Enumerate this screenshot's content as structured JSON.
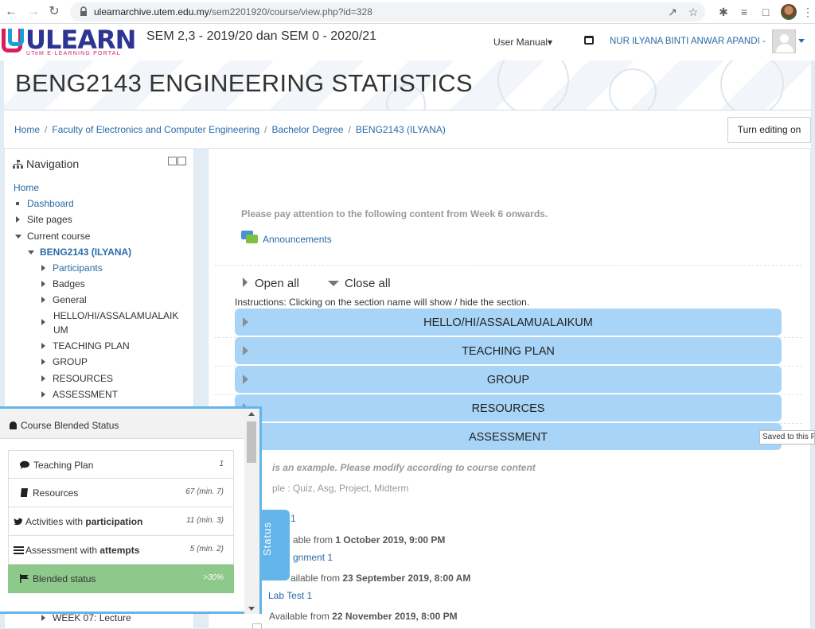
{
  "browser": {
    "url_host": "ulearnarchive.utem.edu.my",
    "url_path": "/sem2201920/course/view.php?id=328"
  },
  "navbar": {
    "logo_text": "ULEARN",
    "logo_sub": "UTeM E-LEARNING PORTAL",
    "semester": "SEM 2,3 - 2019/20 dan SEM 0 - 2020/21",
    "user_manual": "User Manual",
    "user_name": "NUR ILYANA BINTI ANWAR APANDI -"
  },
  "header": {
    "title": "BENG2143 ENGINEERING STATISTICS"
  },
  "breadcrumb": {
    "items": [
      "Home",
      "Faculty of Electronics and Computer Engineering",
      "Bachelor Degree",
      "BENG2143 (ILYANA)"
    ],
    "edit_button": "Turn editing on"
  },
  "navigation": {
    "title": "Navigation",
    "items": [
      {
        "label": "Home"
      },
      {
        "label": "Dashboard"
      },
      {
        "label": "Site pages"
      },
      {
        "label": "Current course"
      },
      {
        "label": "BENG2143 (ILYANA)"
      },
      {
        "label": "Participants"
      },
      {
        "label": "Badges"
      },
      {
        "label": "General"
      },
      {
        "label": "HELLO/HI/ASSALAMUALAIK"
      },
      {
        "label": "UM"
      },
      {
        "label": "TEACHING PLAN"
      },
      {
        "label": "GROUP"
      },
      {
        "label": "RESOURCES"
      },
      {
        "label": "ASSESSMENT"
      },
      {
        "label": "WEEK 07: Lecture"
      }
    ]
  },
  "main": {
    "notice": "Please pay attention to the following content from Week 6 onwards.",
    "announcements": "Announcements",
    "open_all": "Open all",
    "close_all": "Close all",
    "instructions": "Instructions: Clicking on the section name will show / hide the section.",
    "sections": [
      "HELLO/HI/ASSALAMUALAIKUM",
      "TEACHING PLAN",
      "GROUP",
      "RESOURCES",
      "ASSESSMENT"
    ],
    "tooltip": "Saved to this P",
    "example_note": "is an example. Please modify according to course content",
    "example_list": "ple : Quiz, Asg, Project, Midterm",
    "item1": "1",
    "avail1_prefix": "able from ",
    "avail1_date": "1 October 2019, 9:00 PM",
    "item2": "gnment 1",
    "avail2_prefix": "ailable from ",
    "avail2_date": "23 September 2019, 8:00 AM",
    "item3": "Lab Test 1",
    "avail3_prefix": "Available from ",
    "avail3_date": "22 November 2019, 8:00 PM"
  },
  "status_popup": {
    "tab_label": "Status",
    "title": "Course Blended Status",
    "rows": [
      {
        "label": "Teaching Plan",
        "value": "1"
      },
      {
        "label": "Resources",
        "value": "67 (min. 7)"
      },
      {
        "label_prefix": "Activities with ",
        "label_bold": "participation",
        "value": "11 (min. 3)"
      },
      {
        "label_prefix": "Assessment with ",
        "label_bold": "attempts",
        "value": "5 (min. 2)"
      },
      {
        "label": "Blended status",
        "value": ">30%"
      }
    ]
  },
  "colors": {
    "section_bg": "#a8d5f7",
    "popup_border": "#64b5e9",
    "blended_green": "#8dc98a",
    "link": "#2a6aa8"
  }
}
